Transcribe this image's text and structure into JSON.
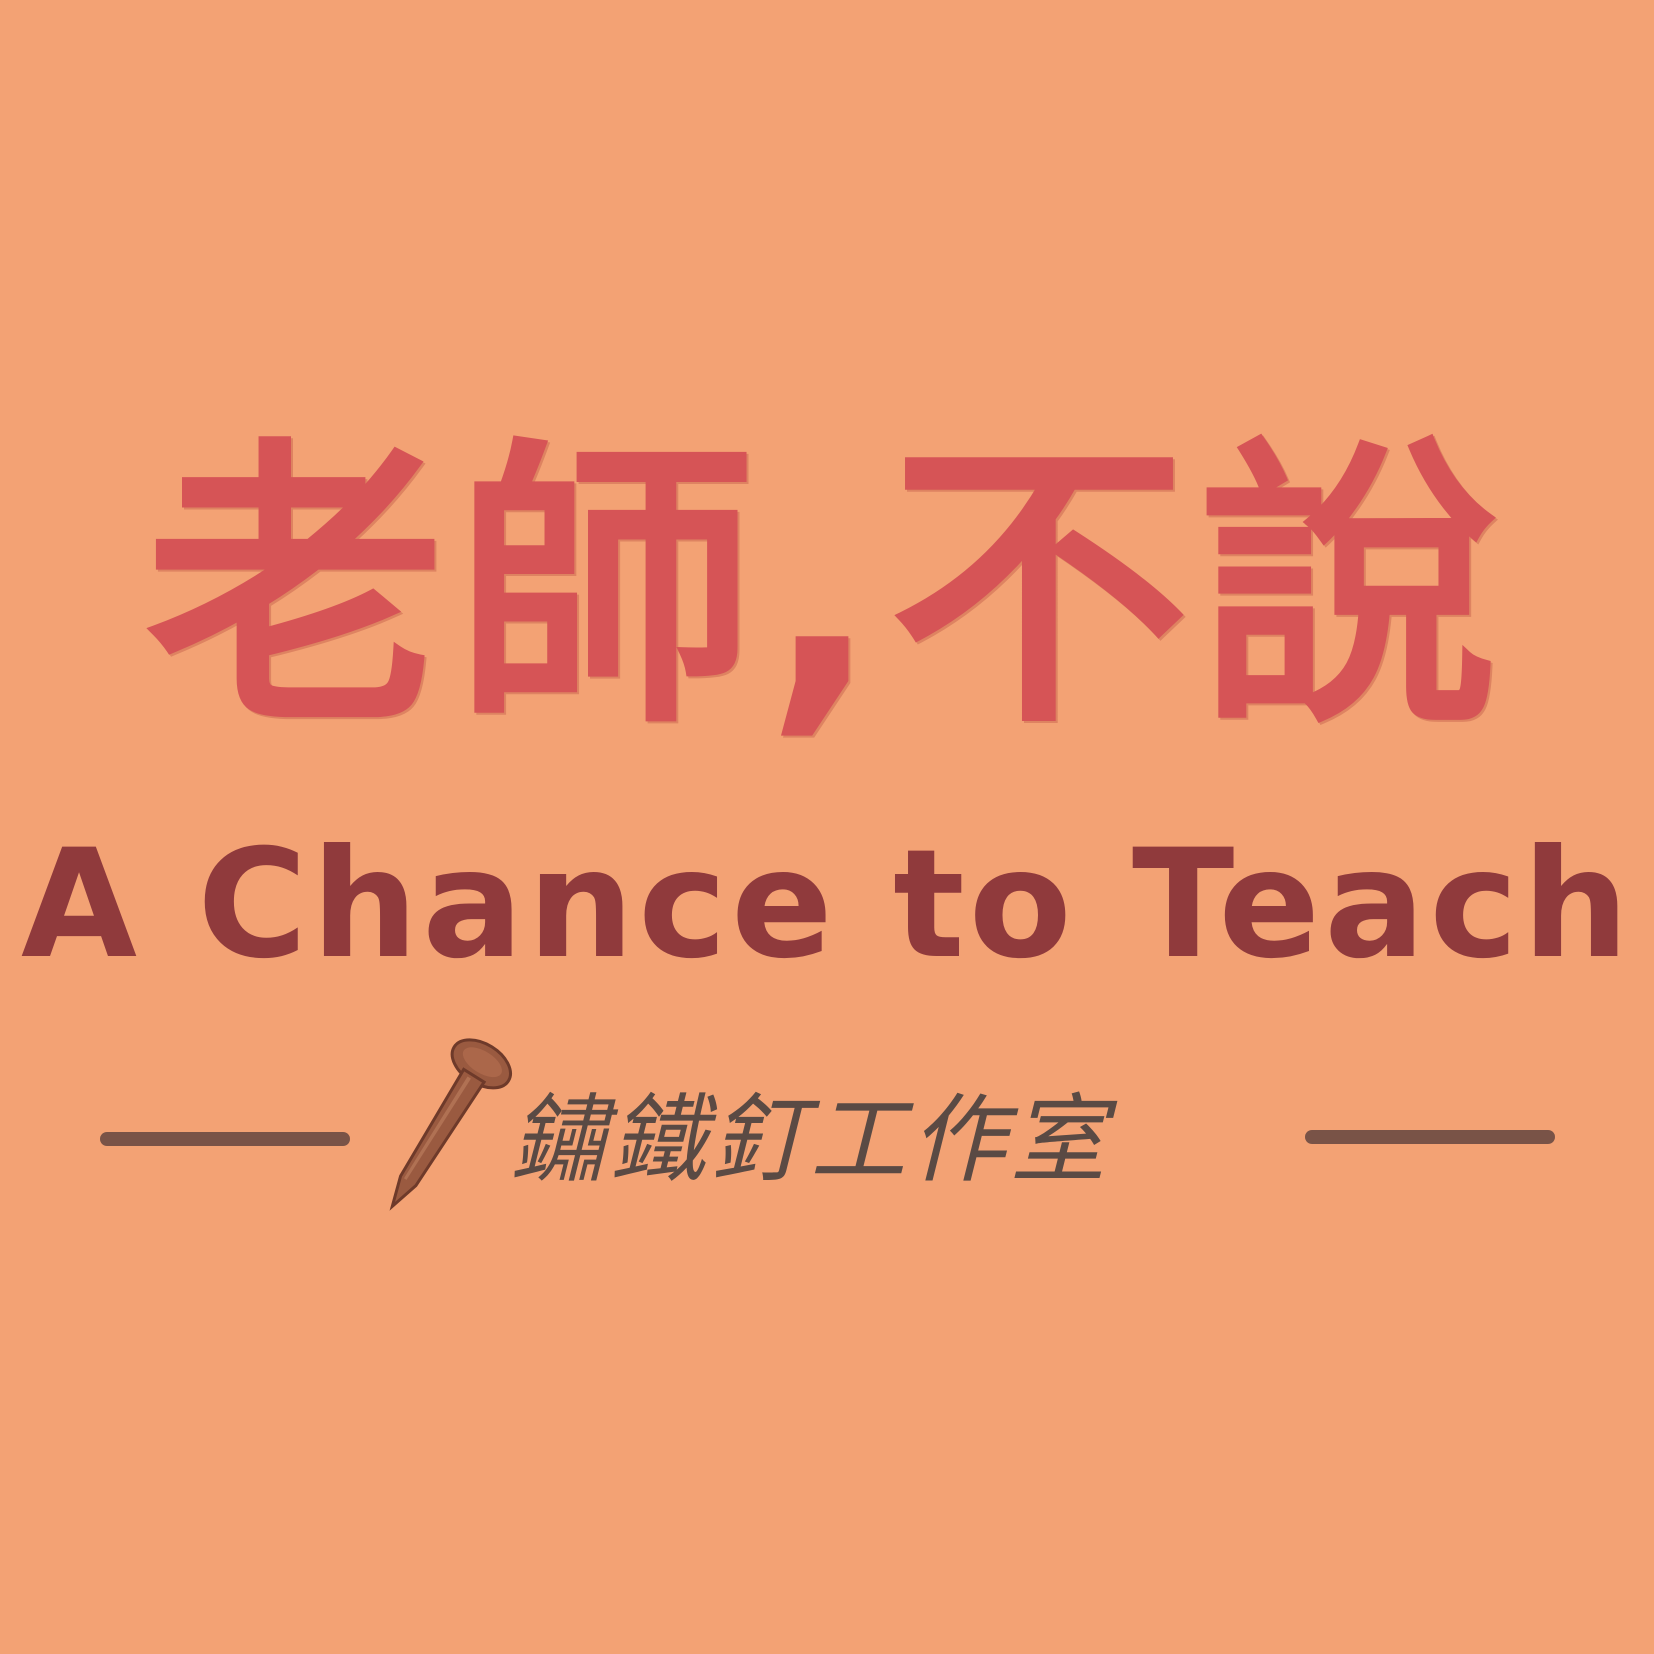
{
  "colors": {
    "background": "#F3A274",
    "title_zh": "#D65456",
    "title_en": "#903A3C",
    "studio": "#5A4A44",
    "divider": "#6B4A42",
    "nail_body": "#9A5A40",
    "nail_shadow": "#6E3A2A"
  },
  "title": {
    "zh": "老師,不說",
    "en": "A Chance to Teach"
  },
  "studio": {
    "name": "鏽鐵釘工作室",
    "icon": "rusty-nail-icon"
  }
}
